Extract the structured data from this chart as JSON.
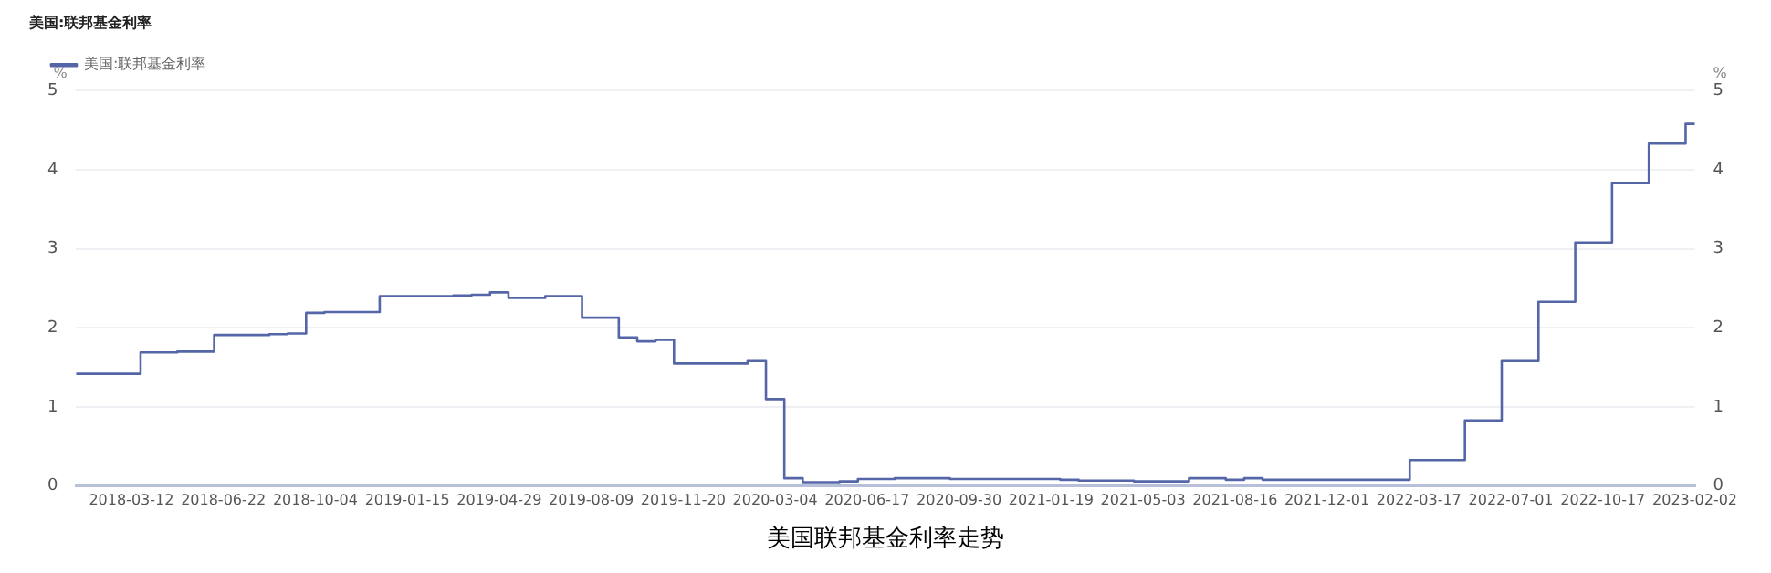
{
  "chart_data": {
    "type": "step",
    "title": "美国:联邦基金利率",
    "ylabel": "%",
    "y2label": "%",
    "legend": "top left",
    "grid": "y",
    "annotations": [
      "美国联邦基金利率走势"
    ],
    "categories": [
      null,
      null,
      null,
      "2018-03-12",
      null,
      null,
      null,
      null,
      "2018-06-22",
      null,
      null,
      null,
      null,
      "2018-10-04",
      null,
      null,
      null,
      null,
      "2019-01-15",
      null,
      null,
      null,
      null,
      "2019-04-29",
      null,
      null,
      null,
      null,
      "2019-08-09",
      null,
      null,
      null,
      null,
      "2019-11-20",
      null,
      null,
      null,
      null,
      "2020-03-04",
      null,
      null,
      null,
      null,
      "2020-06-17",
      null,
      null,
      null,
      null,
      "2020-09-30",
      null,
      null,
      null,
      null,
      "2021-01-19",
      null,
      null,
      null,
      null,
      "2021-05-03",
      null,
      null,
      null,
      null,
      "2021-08-16",
      null,
      null,
      null,
      null,
      "2021-12-01",
      null,
      null,
      null,
      null,
      "2022-03-17",
      null,
      null,
      null,
      null,
      "2022-07-01",
      null,
      null,
      null,
      null,
      "2022-10-17",
      null,
      null,
      null,
      null,
      "2023-02-02"
    ],
    "series": [
      {
        "name": "美国:联邦基金利率",
        "color": "#5465a8",
        "values": [
          1.42,
          1.42,
          1.42,
          1.42,
          1.69,
          1.69,
          1.7,
          1.7,
          1.91,
          1.91,
          1.91,
          1.92,
          1.93,
          2.19,
          2.2,
          2.2,
          2.2,
          2.4,
          2.4,
          2.4,
          2.4,
          2.41,
          2.42,
          2.45,
          2.38,
          2.38,
          2.4,
          2.4,
          2.13,
          2.13,
          1.88,
          1.83,
          1.85,
          1.55,
          1.55,
          1.55,
          1.55,
          1.58,
          1.1,
          0.1,
          0.05,
          0.05,
          0.06,
          0.09,
          0.09,
          0.1,
          0.1,
          0.1,
          0.09,
          0.09,
          0.09,
          0.09,
          0.09,
          0.09,
          0.08,
          0.07,
          0.07,
          0.07,
          0.06,
          0.06,
          0.06,
          0.1,
          0.1,
          0.08,
          0.1,
          0.08,
          0.08,
          0.08,
          0.08,
          0.08,
          0.08,
          0.08,
          0.08,
          0.33,
          0.33,
          0.33,
          0.83,
          0.83,
          1.58,
          1.58,
          2.33,
          2.33,
          3.08,
          3.08,
          3.83,
          3.83,
          4.33,
          4.33,
          4.58
        ]
      }
    ],
    "ylim": [
      0,
      5
    ],
    "yticks": [
      0,
      1,
      2,
      3,
      4,
      5
    ],
    "y2lim": [
      0,
      5
    ],
    "y2ticks": [
      0,
      1,
      2,
      3,
      4,
      5
    ]
  }
}
